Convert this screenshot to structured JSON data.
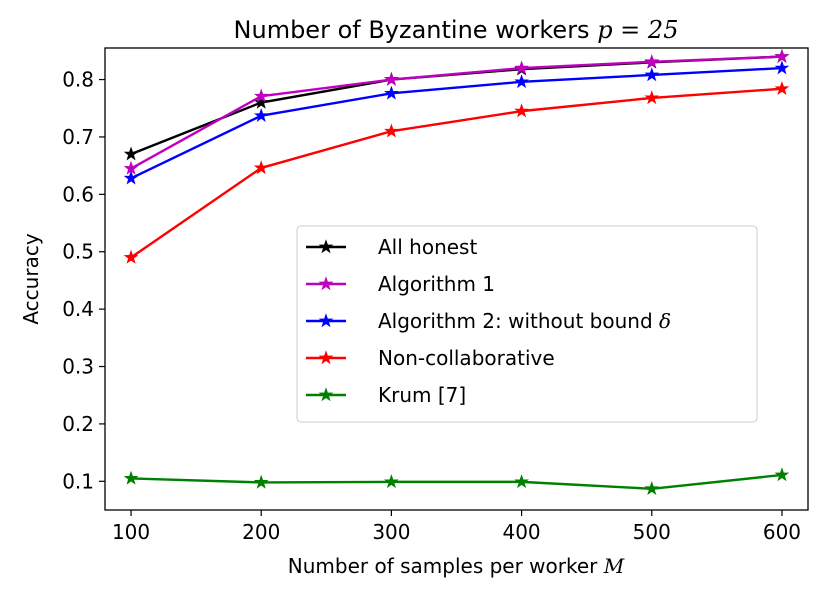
{
  "chart_data": {
    "type": "line",
    "title_main": "Number of Byzantine workers ",
    "title_math": "p = 25",
    "xlabel_main": "Number of samples per worker ",
    "xlabel_math": "M",
    "ylabel": "Accuracy",
    "x": [
      100,
      200,
      300,
      400,
      500,
      600
    ],
    "xlim": [
      80,
      620
    ],
    "ylim": [
      0.05,
      0.855
    ],
    "xticks": [
      "100",
      "200",
      "300",
      "400",
      "500",
      "600"
    ],
    "yticks": [
      "0.1",
      "0.2",
      "0.3",
      "0.4",
      "0.5",
      "0.6",
      "0.7",
      "0.8"
    ],
    "grid": false,
    "legend_position": "center-right",
    "series": [
      {
        "name": "All honest",
        "color": "#000000",
        "values": [
          0.67,
          0.76,
          0.8,
          0.818,
          0.83,
          0.84
        ]
      },
      {
        "name": "Algorithm 1",
        "color": "#bf00bf",
        "values": [
          0.645,
          0.771,
          0.8,
          0.82,
          0.831,
          0.84
        ]
      },
      {
        "name": "Algorithm 2: without bound ",
        "name_math": "δ",
        "color": "#0000ff",
        "values": [
          0.628,
          0.737,
          0.776,
          0.796,
          0.808,
          0.82
        ]
      },
      {
        "name": "Non-collaborative",
        "color": "#ff0000",
        "values": [
          0.49,
          0.646,
          0.71,
          0.745,
          0.768,
          0.784
        ]
      },
      {
        "name": "Krum [7]",
        "color": "#008000",
        "values": [
          0.105,
          0.098,
          0.099,
          0.099,
          0.087,
          0.111
        ]
      }
    ]
  }
}
